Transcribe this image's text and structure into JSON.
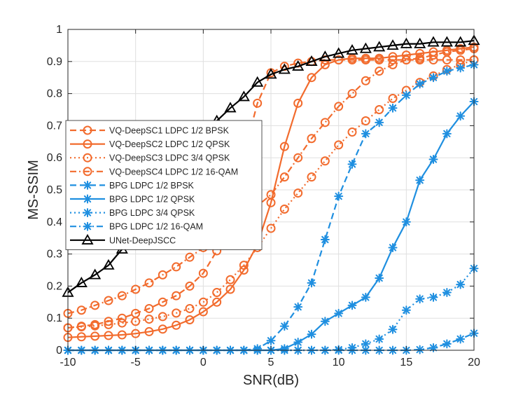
{
  "chart_data": {
    "type": "line",
    "title": "",
    "xlabel": "SNR(dB)",
    "ylabel": "MS-SSIM",
    "xlim": [
      -10,
      20
    ],
    "ylim": [
      0,
      1
    ],
    "grid": true,
    "legend_position": "middle-left",
    "xticks": [
      -10,
      -5,
      0,
      5,
      10,
      15,
      20
    ],
    "yticks": [
      0,
      0.1,
      0.2,
      0.3,
      0.4,
      0.5,
      0.6,
      0.7,
      0.8,
      0.9,
      1
    ],
    "xtick_labels": [
      "-10",
      "-5",
      "0",
      "5",
      "10",
      "15",
      "20"
    ],
    "ytick_labels": [
      "0",
      "0.1",
      "0.2",
      "0.3",
      "0.4",
      "0.5",
      "0.6",
      "0.7",
      "0.8",
      "0.9",
      "1"
    ],
    "x": [
      -10,
      -9,
      -8,
      -7,
      -6,
      -5,
      -4,
      -3,
      -2,
      -1,
      0,
      1,
      2,
      3,
      4,
      5,
      6,
      7,
      8,
      9,
      10,
      11,
      12,
      13,
      14,
      15,
      16,
      17,
      18,
      19,
      20
    ],
    "series": [
      {
        "name": "VQ-DeepSC1 LDPC 1/2 BPSK",
        "color": "#f26b2d",
        "dash": "dashed",
        "marker": "circle",
        "values": [
          0.07,
          0.075,
          0.08,
          0.09,
          0.1,
          0.115,
          0.13,
          0.15,
          0.17,
          0.2,
          0.24,
          0.31,
          0.44,
          0.61,
          0.77,
          0.865,
          0.885,
          0.895,
          0.9,
          0.905,
          0.905,
          0.905,
          0.905,
          0.905,
          0.905,
          0.905,
          0.905,
          0.905,
          0.905,
          0.905,
          0.905
        ]
      },
      {
        "name": "VQ-DeepSC2 LDPC 1/2 QPSK",
        "color": "#f26b2d",
        "dash": "solid",
        "marker": "circle",
        "values": [
          0.04,
          0.042,
          0.044,
          0.046,
          0.048,
          0.052,
          0.058,
          0.066,
          0.078,
          0.095,
          0.12,
          0.15,
          0.19,
          0.25,
          0.33,
          0.46,
          0.635,
          0.77,
          0.85,
          0.89,
          0.905,
          0.91,
          0.91,
          0.91,
          0.915,
          0.92,
          0.925,
          0.93,
          0.935,
          0.94,
          0.945
        ]
      },
      {
        "name": "VQ-DeepSC3 LDPC 3/4 QPSK",
        "color": "#f26b2d",
        "dash": "dotted",
        "marker": "circle",
        "values": [
          0.07,
          0.073,
          0.076,
          0.08,
          0.085,
          0.09,
          0.097,
          0.105,
          0.116,
          0.13,
          0.15,
          0.18,
          0.22,
          0.265,
          0.32,
          0.38,
          0.44,
          0.49,
          0.54,
          0.59,
          0.64,
          0.68,
          0.715,
          0.75,
          0.785,
          0.81,
          0.835,
          0.855,
          0.875,
          0.89,
          0.905
        ]
      },
      {
        "name": "VQ-DeepSC4 LDPC 1/2 16-QAM",
        "color": "#f26b2d",
        "dash": "dashdot",
        "marker": "circle",
        "values": [
          0.115,
          0.125,
          0.14,
          0.155,
          0.17,
          0.19,
          0.21,
          0.235,
          0.26,
          0.29,
          0.32,
          0.355,
          0.39,
          0.42,
          0.45,
          0.485,
          0.54,
          0.6,
          0.66,
          0.71,
          0.76,
          0.8,
          0.84,
          0.87,
          0.89,
          0.905,
          0.91,
          0.92,
          0.93,
          0.935,
          0.94
        ]
      },
      {
        "name": "BPG LDPC 1/2 BPSK",
        "color": "#1f8fe0",
        "dash": "dashed",
        "marker": "star",
        "values": [
          0,
          0,
          0,
          0,
          0,
          0,
          0,
          0,
          0,
          0,
          0,
          0,
          0,
          0,
          0.005,
          0.03,
          0.075,
          0.135,
          0.21,
          0.345,
          0.48,
          0.58,
          0.675,
          0.71,
          0.755,
          0.795,
          0.83,
          0.85,
          0.87,
          0.88,
          0.89
        ]
      },
      {
        "name": "BPG LDPC 1/2 QPSK",
        "color": "#1f8fe0",
        "dash": "solid",
        "marker": "star",
        "values": [
          0,
          0,
          0,
          0,
          0,
          0,
          0,
          0,
          0,
          0,
          0,
          0,
          0,
          0,
          0,
          0,
          0.005,
          0.025,
          0.05,
          0.09,
          0.115,
          0.14,
          0.165,
          0.225,
          0.32,
          0.4,
          0.53,
          0.595,
          0.675,
          0.73,
          0.775
        ]
      },
      {
        "name": "BPG LDPC 3/4 QPSK",
        "color": "#1f8fe0",
        "dash": "dotted",
        "marker": "star",
        "values": [
          0,
          0,
          0,
          0,
          0,
          0,
          0,
          0,
          0,
          0,
          0,
          0,
          0,
          0,
          0,
          0,
          0,
          0,
          0,
          0,
          0.002,
          0.008,
          0.02,
          0.035,
          0.065,
          0.125,
          0.16,
          0.165,
          0.18,
          0.205,
          0.255
        ]
      },
      {
        "name": "BPG LDPC 1/2 16-QAM",
        "color": "#1f8fe0",
        "dash": "dashdot",
        "marker": "star",
        "values": [
          0,
          0,
          0,
          0,
          0,
          0,
          0,
          0,
          0,
          0,
          0,
          0,
          0,
          0,
          0,
          0,
          0,
          0,
          0,
          0,
          0,
          0,
          0,
          0,
          0,
          0,
          0.002,
          0.008,
          0.02,
          0.035,
          0.053
        ]
      },
      {
        "name": "UNet-DeepJSCC",
        "color": "#000000",
        "dash": "solid",
        "marker": "triangle",
        "values": [
          0.18,
          0.21,
          0.235,
          0.265,
          0.315,
          0.37,
          0.43,
          0.5,
          0.565,
          0.625,
          0.67,
          0.715,
          0.755,
          0.79,
          0.835,
          0.86,
          0.875,
          0.885,
          0.9,
          0.915,
          0.925,
          0.935,
          0.94,
          0.945,
          0.95,
          0.955,
          0.955,
          0.96,
          0.96,
          0.96,
          0.965
        ]
      }
    ]
  }
}
